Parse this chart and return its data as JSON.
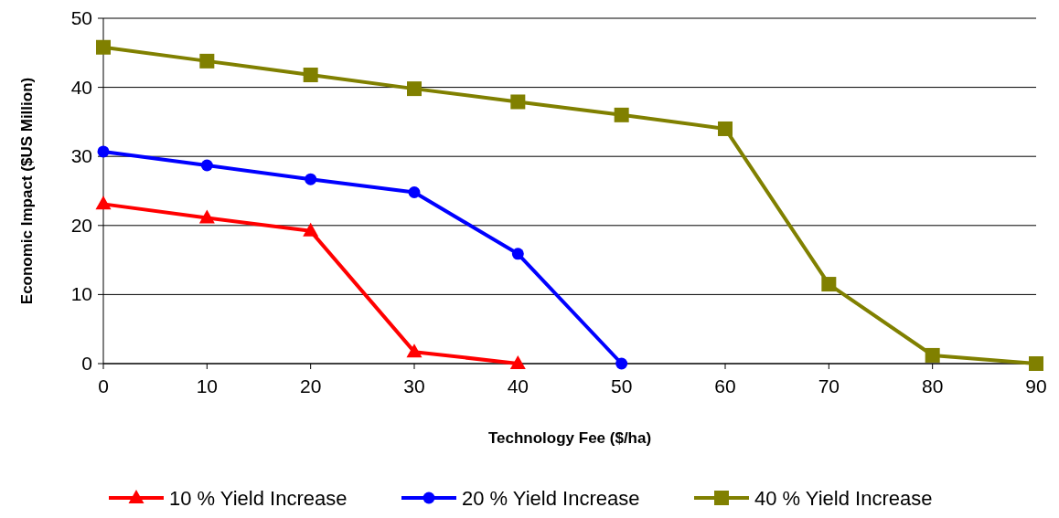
{
  "chart_data": {
    "type": "line",
    "xlabel": "Technology Fee ($/ha)",
    "ylabel": "Economic Impact ($US Million)",
    "xlim": [
      0,
      90
    ],
    "xticks": [
      0,
      10,
      20,
      30,
      40,
      50,
      60,
      70,
      80,
      90
    ],
    "ylim": [
      0,
      50
    ],
    "yticks": [
      0,
      10,
      20,
      30,
      40,
      50
    ],
    "grid": "y",
    "legend": "bottom",
    "line_style": "solid",
    "series": [
      {
        "name": "10 % Yield Increase",
        "color": "#ff0000",
        "marker": "triangle",
        "x": [
          0,
          10,
          20,
          30,
          40
        ],
        "values": [
          23.1,
          21.1,
          19.2,
          1.7,
          0
        ]
      },
      {
        "name": "20 % Yield Increase",
        "color": "#0000ff",
        "marker": "circle",
        "x": [
          0,
          10,
          20,
          30,
          40,
          50
        ],
        "values": [
          30.7,
          28.7,
          26.7,
          24.8,
          15.9,
          0
        ]
      },
      {
        "name": "40 % Yield Increase",
        "color": "#808000",
        "marker": "square",
        "x": [
          0,
          10,
          20,
          30,
          40,
          50,
          60,
          70,
          80,
          90
        ],
        "values": [
          45.8,
          43.8,
          41.8,
          39.8,
          37.9,
          36,
          34,
          11.5,
          1.2,
          0
        ]
      }
    ]
  }
}
